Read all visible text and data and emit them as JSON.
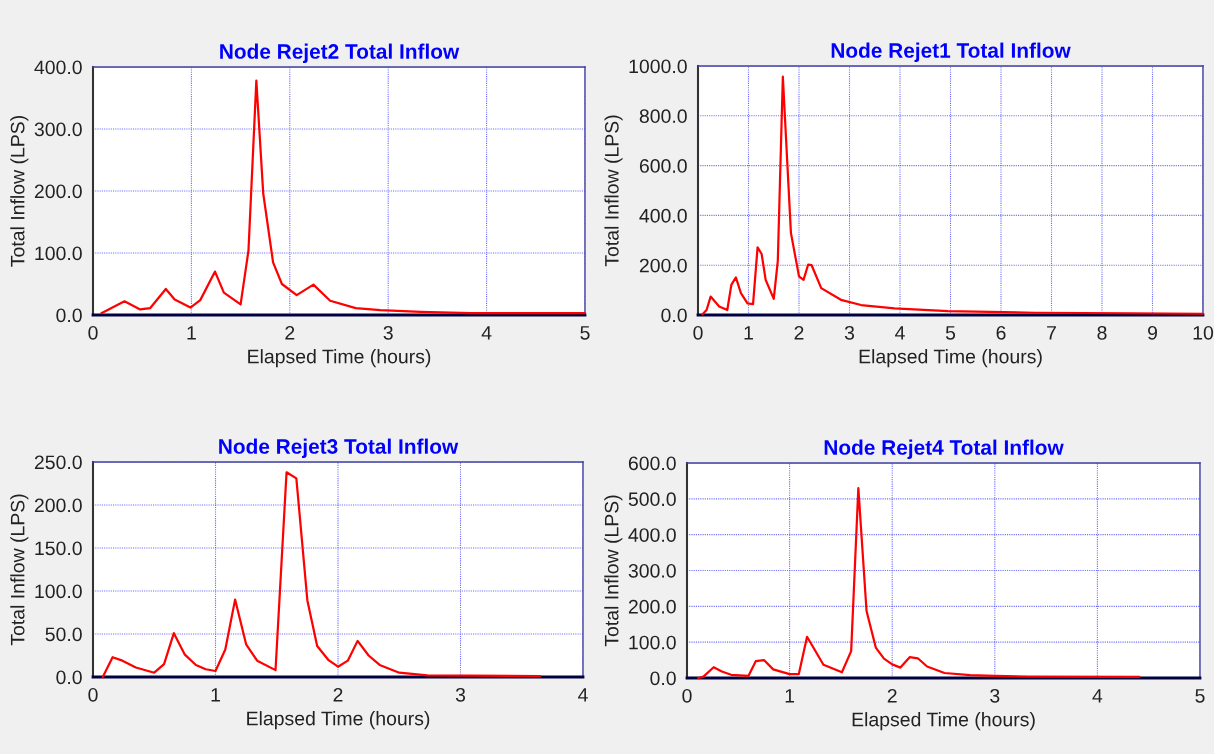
{
  "chart_data": [
    {
      "type": "line",
      "title": "Node Rejet2 Total Inflow",
      "xlabel": "Elapsed Time (hours)",
      "ylabel": "Total Inflow (LPS)",
      "grid": true,
      "marker": "none",
      "line_style": "solid",
      "xlim": [
        0,
        5
      ],
      "xticks": [
        0,
        1,
        2,
        3,
        4,
        5
      ],
      "ylim": [
        0,
        400
      ],
      "yticks": [
        {
          "value": 0,
          "label": "0.0"
        },
        {
          "value": 100,
          "label": "100.0"
        },
        {
          "value": 200,
          "label": "200.0"
        },
        {
          "value": 300,
          "label": "300.0"
        },
        {
          "value": 400,
          "label": "400.0"
        }
      ],
      "series": [
        {
          "color": "#ff0000",
          "x": [
            0.085,
            0.32,
            0.48,
            0.58,
            0.74,
            0.83,
            0.99,
            1.09,
            1.24,
            1.33,
            1.5,
            1.58,
            1.66,
            1.73,
            1.83,
            1.92,
            2.07,
            2.24,
            2.41,
            2.67,
            2.92,
            3.33,
            3.84,
            5
          ],
          "values": [
            3,
            22,
            9,
            11,
            42,
            25,
            12,
            24,
            70,
            36,
            17,
            104,
            378,
            196,
            85,
            50,
            32,
            49,
            23,
            11,
            8,
            5,
            3,
            3
          ]
        }
      ]
    },
    {
      "type": "line",
      "title": "Node Rejet1 Total Inflow",
      "xlabel": "Elapsed Time (hours)",
      "ylabel": "Total Inflow (LPS)",
      "grid": true,
      "marker": "none",
      "line_style": "solid",
      "xlim": [
        0,
        10
      ],
      "xticks": [
        0,
        1,
        2,
        3,
        4,
        5,
        6,
        7,
        8,
        9,
        10
      ],
      "ylim": [
        0,
        1000
      ],
      "yticks": [
        {
          "value": 0,
          "label": "0.0"
        },
        {
          "value": 200,
          "label": "200.0"
        },
        {
          "value": 400,
          "label": "400.0"
        },
        {
          "value": 600,
          "label": "600.0"
        },
        {
          "value": 800,
          "label": "800.0"
        },
        {
          "value": 1000,
          "label": "1000.0"
        }
      ],
      "series": [
        {
          "color": "#ff0000",
          "x": [
            0.09,
            0.17,
            0.25,
            0.42,
            0.58,
            0.66,
            0.75,
            0.85,
            0.98,
            1.09,
            1.18,
            1.26,
            1.34,
            1.5,
            1.58,
            1.68,
            1.84,
            2.0,
            2.09,
            2.18,
            2.25,
            2.44,
            2.83,
            3.23,
            3.89,
            4.95,
            6.67,
            8.53,
            10
          ],
          "values": [
            3,
            20,
            74,
            34,
            20,
            121,
            151,
            88,
            47,
            44,
            272,
            245,
            141,
            65,
            216,
            957,
            330,
            155,
            141,
            202,
            200,
            108,
            61,
            40,
            27,
            16,
            9,
            7,
            5
          ]
        }
      ]
    },
    {
      "type": "line",
      "title": "Node Rejet3 Total Inflow",
      "xlabel": "Elapsed Time (hours)",
      "ylabel": "Total Inflow (LPS)",
      "grid": true,
      "marker": "none",
      "line_style": "solid",
      "xlim": [
        0,
        4
      ],
      "xticks": [
        0,
        1,
        2,
        3,
        4
      ],
      "ylim": [
        0,
        250
      ],
      "yticks": [
        {
          "value": 0,
          "label": "0.0"
        },
        {
          "value": 50,
          "label": "50.0"
        },
        {
          "value": 100,
          "label": "100.0"
        },
        {
          "value": 150,
          "label": "150.0"
        },
        {
          "value": 200,
          "label": "200.0"
        },
        {
          "value": 250,
          "label": "250.0"
        }
      ],
      "series": [
        {
          "color": "#ff0000",
          "x": [
            0.08,
            0.16,
            0.24,
            0.35,
            0.5,
            0.58,
            0.66,
            0.75,
            0.84,
            0.92,
            1.0,
            1.08,
            1.16,
            1.25,
            1.34,
            1.49,
            1.58,
            1.66,
            1.75,
            1.83,
            1.92,
            2.0,
            2.08,
            2.16,
            2.25,
            2.34,
            2.5,
            2.73,
            3.65
          ],
          "values": [
            0,
            23,
            19,
            11,
            5,
            15,
            51,
            26,
            14,
            9,
            7,
            32,
            90,
            38,
            19,
            8,
            238,
            231,
            89,
            36,
            20,
            12,
            19,
            42,
            25,
            14,
            5,
            2,
            1
          ]
        }
      ]
    },
    {
      "type": "line",
      "title": "Node Rejet4 Total Inflow",
      "xlabel": "Elapsed Time (hours)",
      "ylabel": "Total Inflow (LPS)",
      "grid": true,
      "marker": "none",
      "line_style": "solid",
      "xlim": [
        0,
        5
      ],
      "xticks": [
        0,
        1,
        2,
        3,
        4,
        5
      ],
      "ylim": [
        0,
        600
      ],
      "yticks": [
        {
          "value": 0,
          "label": "0.0"
        },
        {
          "value": 100,
          "label": "100.0"
        },
        {
          "value": 200,
          "label": "200.0"
        },
        {
          "value": 300,
          "label": "300.0"
        },
        {
          "value": 400,
          "label": "400.0"
        },
        {
          "value": 500,
          "label": "500.0"
        },
        {
          "value": 600,
          "label": "600.0"
        }
      ],
      "series": [
        {
          "color": "#ff0000",
          "x": [
            0.11,
            0.16,
            0.26,
            0.34,
            0.43,
            0.6,
            0.67,
            0.75,
            0.84,
            1.0,
            1.09,
            1.17,
            1.33,
            1.51,
            1.6,
            1.67,
            1.75,
            1.84,
            1.92,
            2.0,
            2.08,
            2.17,
            2.25,
            2.34,
            2.51,
            2.76,
            3.0,
            3.33,
            4.41
          ],
          "values": [
            0,
            4,
            30,
            18,
            9,
            6,
            47,
            50,
            24,
            11,
            11,
            115,
            37,
            16,
            75,
            530,
            187,
            85,
            54,
            38,
            29,
            58,
            55,
            32,
            14,
            8,
            6,
            4,
            3
          ]
        }
      ]
    }
  ]
}
